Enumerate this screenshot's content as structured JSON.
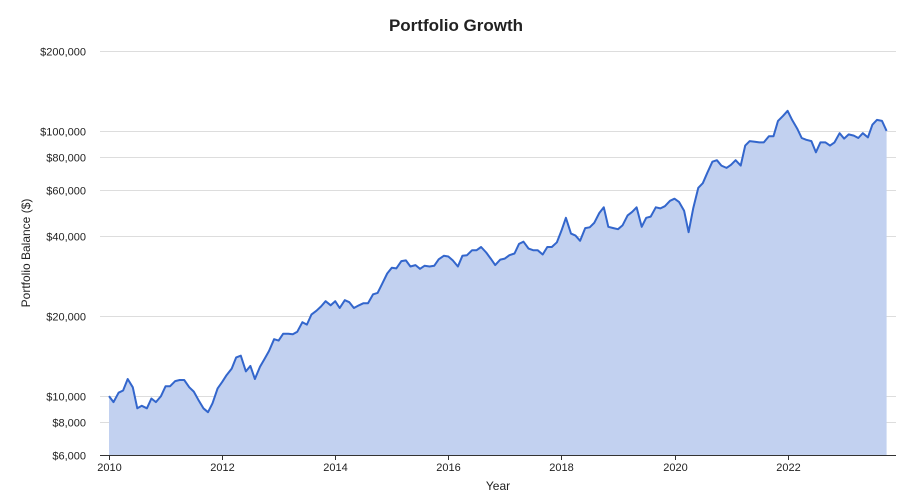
{
  "chart_data": {
    "type": "area",
    "title": "Portfolio Growth",
    "xlabel": "Year",
    "ylabel": "Portfolio Balance ($)",
    "y_scale": "log",
    "ylim": [
      6000,
      200000
    ],
    "xlim": [
      2010,
      2023.85
    ],
    "y_ticks": [
      {
        "value": 6000,
        "label": "$6,000"
      },
      {
        "value": 8000,
        "label": "$8,000"
      },
      {
        "value": 10000,
        "label": "$10,000"
      },
      {
        "value": 20000,
        "label": "$20,000"
      },
      {
        "value": 40000,
        "label": "$40,000"
      },
      {
        "value": 60000,
        "label": "$60,000"
      },
      {
        "value": 80000,
        "label": "$80,000"
      },
      {
        "value": 100000,
        "label": "$100,000"
      },
      {
        "value": 200000,
        "label": "$200,000"
      }
    ],
    "x_ticks": [
      {
        "value": 2010,
        "label": "2010"
      },
      {
        "value": 2012,
        "label": "2012"
      },
      {
        "value": 2014,
        "label": "2014"
      },
      {
        "value": 2016,
        "label": "2016"
      },
      {
        "value": 2018,
        "label": "2018"
      },
      {
        "value": 2020,
        "label": "2020"
      },
      {
        "value": 2022,
        "label": "2022"
      }
    ],
    "grid": true,
    "legend": "none",
    "colors": {
      "line": "#3366cc",
      "fill": "#c2d1f0"
    },
    "series": [
      {
        "points": [
          [
            2010.0,
            10000
          ],
          [
            2010.08,
            9500
          ],
          [
            2010.17,
            10300
          ],
          [
            2010.25,
            10500
          ],
          [
            2010.33,
            11600
          ],
          [
            2010.42,
            10800
          ],
          [
            2010.5,
            9000
          ],
          [
            2010.58,
            9200
          ],
          [
            2010.67,
            9000
          ],
          [
            2010.75,
            9800
          ],
          [
            2010.83,
            9500
          ],
          [
            2010.92,
            10000
          ],
          [
            2011.0,
            10900
          ],
          [
            2011.08,
            10900
          ],
          [
            2011.17,
            11400
          ],
          [
            2011.25,
            11500
          ],
          [
            2011.33,
            11500
          ],
          [
            2011.42,
            10800
          ],
          [
            2011.5,
            10400
          ],
          [
            2011.58,
            9700
          ],
          [
            2011.67,
            9000
          ],
          [
            2011.75,
            8700
          ],
          [
            2011.83,
            9400
          ],
          [
            2011.92,
            10700
          ],
          [
            2012.0,
            11300
          ],
          [
            2012.08,
            12000
          ],
          [
            2012.17,
            12700
          ],
          [
            2012.25,
            14000
          ],
          [
            2012.33,
            14200
          ],
          [
            2012.42,
            12400
          ],
          [
            2012.5,
            13000
          ],
          [
            2012.58,
            11600
          ],
          [
            2012.67,
            12900
          ],
          [
            2012.75,
            13800
          ],
          [
            2012.83,
            14800
          ],
          [
            2012.92,
            16400
          ],
          [
            2013.0,
            16200
          ],
          [
            2013.08,
            17200
          ],
          [
            2013.17,
            17200
          ],
          [
            2013.25,
            17100
          ],
          [
            2013.33,
            17500
          ],
          [
            2013.42,
            19000
          ],
          [
            2013.5,
            18600
          ],
          [
            2013.58,
            20300
          ],
          [
            2013.67,
            21000
          ],
          [
            2013.75,
            21800
          ],
          [
            2013.83,
            22800
          ],
          [
            2013.92,
            22000
          ],
          [
            2014.0,
            22800
          ],
          [
            2014.08,
            21500
          ],
          [
            2014.17,
            23000
          ],
          [
            2014.25,
            22600
          ],
          [
            2014.33,
            21500
          ],
          [
            2014.42,
            22000
          ],
          [
            2014.5,
            22400
          ],
          [
            2014.58,
            22400
          ],
          [
            2014.67,
            24200
          ],
          [
            2014.75,
            24500
          ],
          [
            2014.83,
            26500
          ],
          [
            2014.92,
            29000
          ],
          [
            2015.0,
            30500
          ],
          [
            2015.08,
            30300
          ],
          [
            2015.17,
            32300
          ],
          [
            2015.25,
            32500
          ],
          [
            2015.33,
            30800
          ],
          [
            2015.42,
            31200
          ],
          [
            2015.5,
            30200
          ],
          [
            2015.58,
            31000
          ],
          [
            2015.67,
            30800
          ],
          [
            2015.75,
            31000
          ],
          [
            2015.83,
            32800
          ],
          [
            2015.92,
            33800
          ],
          [
            2016.0,
            33600
          ],
          [
            2016.08,
            32500
          ],
          [
            2016.17,
            30800
          ],
          [
            2016.25,
            33800
          ],
          [
            2016.33,
            34000
          ],
          [
            2016.42,
            35500
          ],
          [
            2016.5,
            35500
          ],
          [
            2016.58,
            36500
          ],
          [
            2016.67,
            34800
          ],
          [
            2016.75,
            33000
          ],
          [
            2016.83,
            31200
          ],
          [
            2016.92,
            32700
          ],
          [
            2017.0,
            33000
          ],
          [
            2017.08,
            34000
          ],
          [
            2017.17,
            34500
          ],
          [
            2017.25,
            37500
          ],
          [
            2017.33,
            38200
          ],
          [
            2017.42,
            36000
          ],
          [
            2017.5,
            35500
          ],
          [
            2017.58,
            35500
          ],
          [
            2017.67,
            34200
          ],
          [
            2017.75,
            36500
          ],
          [
            2017.83,
            36500
          ],
          [
            2017.92,
            38000
          ],
          [
            2018.0,
            42000
          ],
          [
            2018.08,
            47000
          ],
          [
            2018.17,
            41000
          ],
          [
            2018.25,
            40300
          ],
          [
            2018.33,
            38500
          ],
          [
            2018.42,
            43000
          ],
          [
            2018.5,
            43300
          ],
          [
            2018.58,
            45000
          ],
          [
            2018.67,
            49000
          ],
          [
            2018.75,
            51500
          ],
          [
            2018.83,
            43500
          ],
          [
            2018.92,
            43000
          ],
          [
            2019.0,
            42600
          ],
          [
            2019.08,
            44000
          ],
          [
            2019.17,
            48000
          ],
          [
            2019.25,
            49500
          ],
          [
            2019.33,
            51500
          ],
          [
            2019.42,
            43500
          ],
          [
            2019.5,
            47000
          ],
          [
            2019.58,
            47500
          ],
          [
            2019.67,
            51500
          ],
          [
            2019.75,
            51000
          ],
          [
            2019.83,
            52000
          ],
          [
            2019.92,
            54500
          ],
          [
            2020.0,
            55500
          ],
          [
            2020.08,
            54000
          ],
          [
            2020.17,
            50000
          ],
          [
            2020.25,
            41500
          ],
          [
            2020.33,
            51000
          ],
          [
            2020.42,
            61000
          ],
          [
            2020.5,
            63500
          ],
          [
            2020.58,
            69500
          ],
          [
            2020.67,
            76500
          ],
          [
            2020.75,
            77500
          ],
          [
            2020.83,
            74000
          ],
          [
            2020.92,
            72500
          ],
          [
            2021.0,
            74500
          ],
          [
            2021.08,
            77500
          ],
          [
            2021.17,
            74000
          ],
          [
            2021.25,
            88000
          ],
          [
            2021.33,
            91500
          ],
          [
            2021.42,
            91000
          ],
          [
            2021.5,
            90500
          ],
          [
            2021.58,
            90500
          ],
          [
            2021.67,
            95500
          ],
          [
            2021.75,
            95500
          ],
          [
            2021.83,
            109000
          ],
          [
            2021.92,
            114000
          ],
          [
            2022.0,
            119000
          ],
          [
            2022.08,
            110000
          ],
          [
            2022.17,
            102000
          ],
          [
            2022.25,
            94000
          ],
          [
            2022.33,
            92500
          ],
          [
            2022.42,
            91500
          ],
          [
            2022.5,
            83000
          ],
          [
            2022.58,
            90500
          ],
          [
            2022.67,
            90500
          ],
          [
            2022.75,
            88000
          ],
          [
            2022.83,
            90500
          ],
          [
            2022.92,
            98000
          ],
          [
            2023.0,
            93500
          ],
          [
            2023.08,
            97000
          ],
          [
            2023.17,
            96000
          ],
          [
            2023.25,
            94000
          ],
          [
            2023.33,
            98000
          ],
          [
            2023.42,
            94500
          ],
          [
            2023.5,
            105500
          ],
          [
            2023.58,
            110000
          ],
          [
            2023.67,
            109000
          ],
          [
            2023.75,
            100000
          ]
        ]
      }
    ]
  }
}
